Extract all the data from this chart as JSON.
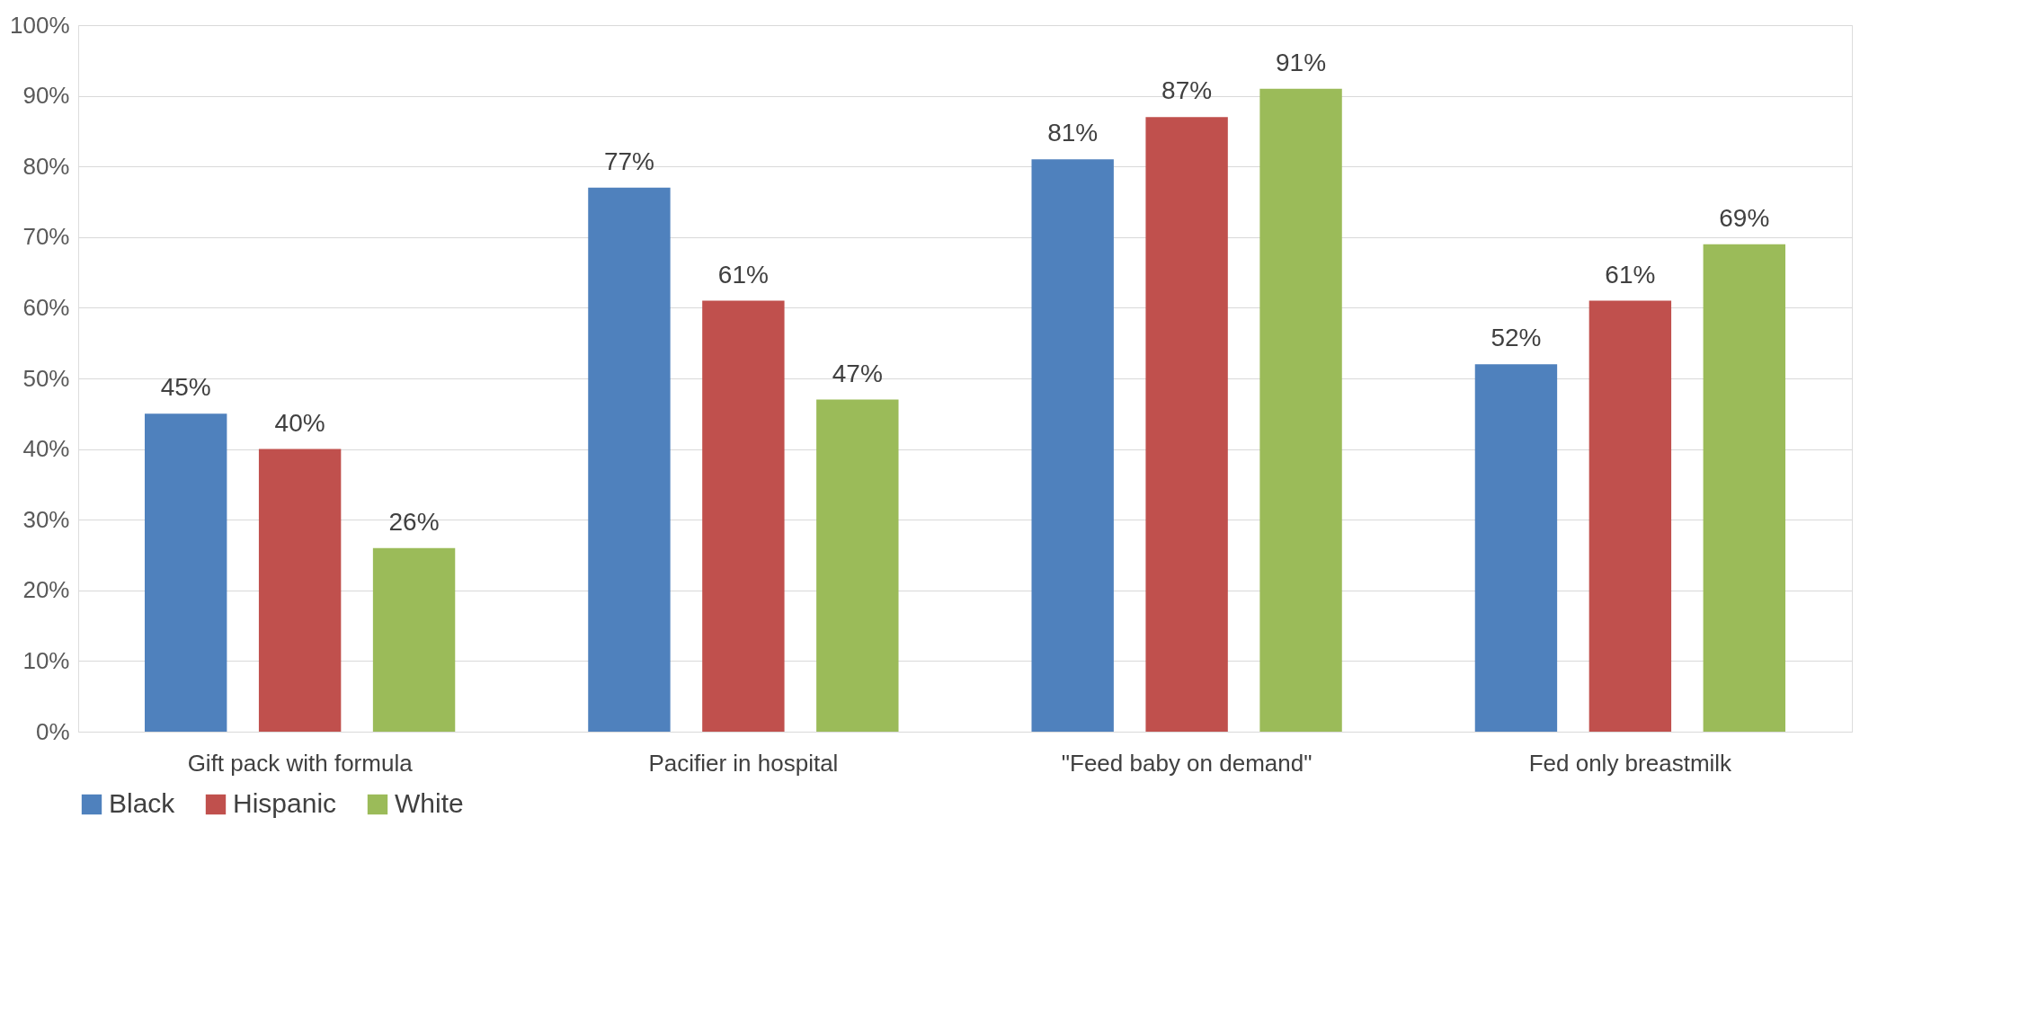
{
  "chart_data": {
    "type": "bar",
    "categories": [
      "Gift pack with formula",
      "Pacifier in hospital",
      "\"Feed baby on demand\"",
      "Fed only breastmilk"
    ],
    "series": [
      {
        "name": "Black",
        "color": "#4f81bd",
        "values": [
          45,
          77,
          81,
          52
        ],
        "value_labels": [
          "45%",
          "77%",
          "81%",
          "52%"
        ]
      },
      {
        "name": "Hispanic",
        "color": "#c0504d",
        "values": [
          40,
          61,
          87,
          61
        ],
        "value_labels": [
          "40%",
          "61%",
          "87%",
          "61%"
        ]
      },
      {
        "name": "White",
        "color": "#9bbb59",
        "values": [
          26,
          47,
          91,
          69
        ],
        "value_labels": [
          "26%",
          "47%",
          "91%",
          "69%"
        ]
      }
    ],
    "ylim": [
      0,
      100
    ],
    "yticks": [
      {
        "value": 0,
        "label": "0%"
      },
      {
        "value": 10,
        "label": "10%"
      },
      {
        "value": 20,
        "label": "20%"
      },
      {
        "value": 30,
        "label": "30%"
      },
      {
        "value": 40,
        "label": "40%"
      },
      {
        "value": 50,
        "label": "50%"
      },
      {
        "value": 60,
        "label": "60%"
      },
      {
        "value": 70,
        "label": "70%"
      },
      {
        "value": 80,
        "label": "80%"
      },
      {
        "value": 90,
        "label": "90%"
      },
      {
        "value": 100,
        "label": "100%"
      }
    ],
    "grid": "y",
    "legend": "bottom"
  }
}
